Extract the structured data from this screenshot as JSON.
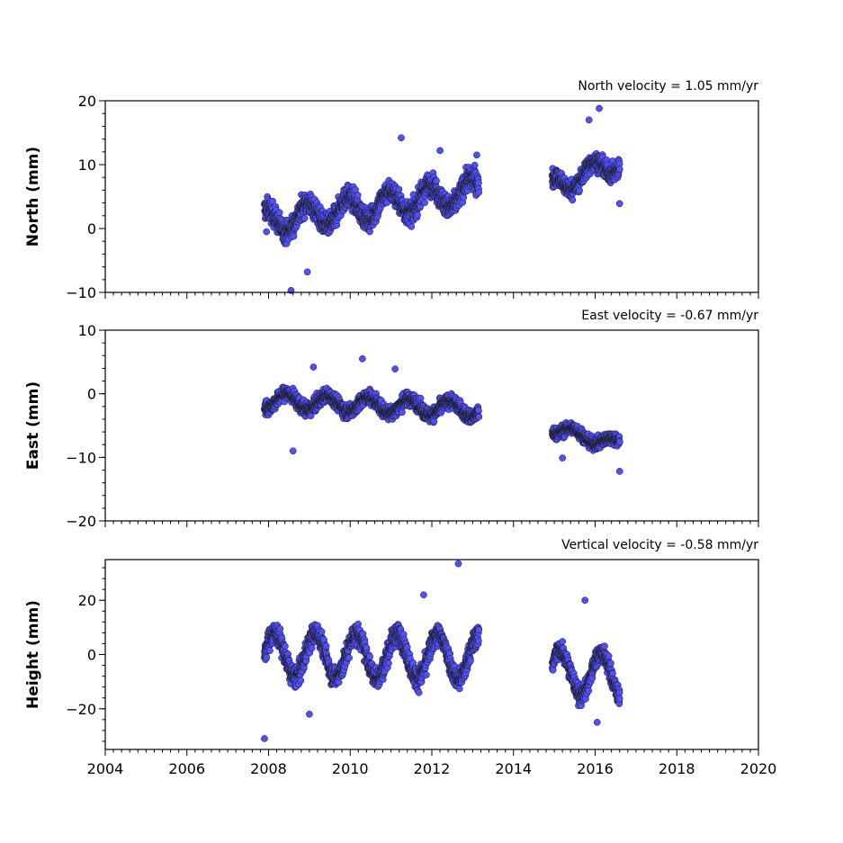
{
  "chart_data": [
    {
      "type": "scatter",
      "title": "",
      "annotation": "North velocity = 1.05 mm/yr",
      "xlabel": "",
      "ylabel": "North (mm)",
      "xlim": [
        2004,
        2020
      ],
      "ylim": [
        -10,
        20
      ],
      "y_ticks": [
        -10,
        0,
        10,
        20
      ],
      "y_tick_labels": [
        "−10",
        "0",
        "10",
        "20"
      ],
      "x_ticks": [
        2004,
        2006,
        2008,
        2010,
        2012,
        2014,
        2016,
        2018,
        2020
      ],
      "x_tick_labels": [],
      "color": "#5050ff",
      "series": [
        {
          "segments": [
            {
              "start": 2007.9,
              "end": 2013.15,
              "trend": [
                [
                  2007.9,
                  1.0
                ],
                [
                  2013.15,
                  6.0
                ]
              ],
              "amp": 2.0,
              "phase": 0.3,
              "noise": 2.2
            },
            {
              "start": 2014.95,
              "end": 2016.6,
              "trend": [
                [
                  2014.95,
                  6.5
                ],
                [
                  2016.6,
                  10.5
                ]
              ],
              "amp": 1.5,
              "phase": 0.3,
              "noise": 1.8
            }
          ],
          "outliers": [
            [
              2007.95,
              -0.5
            ],
            [
              2008.55,
              -9.7
            ],
            [
              2008.95,
              -6.8
            ],
            [
              2011.25,
              14.2
            ],
            [
              2012.2,
              12.2
            ],
            [
              2013.1,
              11.5
            ],
            [
              2015.85,
              17.0
            ],
            [
              2016.1,
              18.8
            ],
            [
              2016.6,
              3.9
            ]
          ]
        }
      ]
    },
    {
      "type": "scatter",
      "title": "",
      "annotation": "East velocity = -0.67 mm/yr",
      "xlabel": "",
      "ylabel": "East (mm)",
      "xlim": [
        2004,
        2020
      ],
      "ylim": [
        -20,
        10
      ],
      "y_ticks": [
        -20,
        -10,
        0,
        10
      ],
      "y_tick_labels": [
        "−20",
        "−10",
        "0",
        "10"
      ],
      "x_ticks": [
        2004,
        2006,
        2008,
        2010,
        2012,
        2014,
        2016,
        2018,
        2020
      ],
      "x_tick_labels": [],
      "color": "#5050ff",
      "series": [
        {
          "segments": [
            {
              "start": 2007.9,
              "end": 2013.15,
              "trend": [
                [
                  2007.9,
                  -1.0
                ],
                [
                  2013.15,
                  -2.5
                ]
              ],
              "amp": 1.2,
              "phase": 0.8,
              "noise": 1.4
            },
            {
              "start": 2014.95,
              "end": 2016.6,
              "trend": [
                [
                  2014.95,
                  -5.5
                ],
                [
                  2016.6,
                  -8.0
                ]
              ],
              "amp": 0.8,
              "phase": 0.8,
              "noise": 1.2
            }
          ],
          "outliers": [
            [
              2008.6,
              -9.0
            ],
            [
              2010.3,
              5.5
            ],
            [
              2011.1,
              3.9
            ],
            [
              2009.1,
              4.2
            ],
            [
              2015.2,
              -10.1
            ],
            [
              2016.6,
              -12.2
            ]
          ]
        }
      ]
    },
    {
      "type": "scatter",
      "title": "",
      "annotation": "Vertical velocity = -0.58 mm/yr",
      "xlabel": "",
      "ylabel": "Height (mm)",
      "xlim": [
        2004,
        2020
      ],
      "ylim": [
        -35,
        35
      ],
      "y_ticks": [
        -20,
        0,
        20
      ],
      "y_tick_labels": [
        "−20",
        "0",
        "20"
      ],
      "x_ticks": [
        2004,
        2006,
        2008,
        2010,
        2012,
        2014,
        2016,
        2018,
        2020
      ],
      "x_tick_labels": [
        "2004",
        "2006",
        "2008",
        "2010",
        "2012",
        "2014",
        "2016",
        "2018",
        "2020"
      ],
      "color": "#5050ff",
      "series": [
        {
          "segments": [
            {
              "start": 2007.9,
              "end": 2013.15,
              "trend": [
                [
                  2007.9,
                  0.0
                ],
                [
                  2013.15,
                  -1.0
                ]
              ],
              "amp": 8.0,
              "phase": 0.1,
              "noise": 5.0
            },
            {
              "start": 2014.95,
              "end": 2016.6,
              "trend": [
                [
                  2014.95,
                  -6.0
                ],
                [
                  2016.6,
                  -8.0
                ]
              ],
              "amp": 8.0,
              "phase": 0.1,
              "noise": 4.5
            }
          ],
          "outliers": [
            [
              2007.9,
              -31.0
            ],
            [
              2012.65,
              33.5
            ],
            [
              2011.8,
              22.0
            ],
            [
              2015.75,
              20.0
            ],
            [
              2016.05,
              -25.0
            ],
            [
              2009.0,
              -22.0
            ]
          ]
        }
      ]
    }
  ]
}
